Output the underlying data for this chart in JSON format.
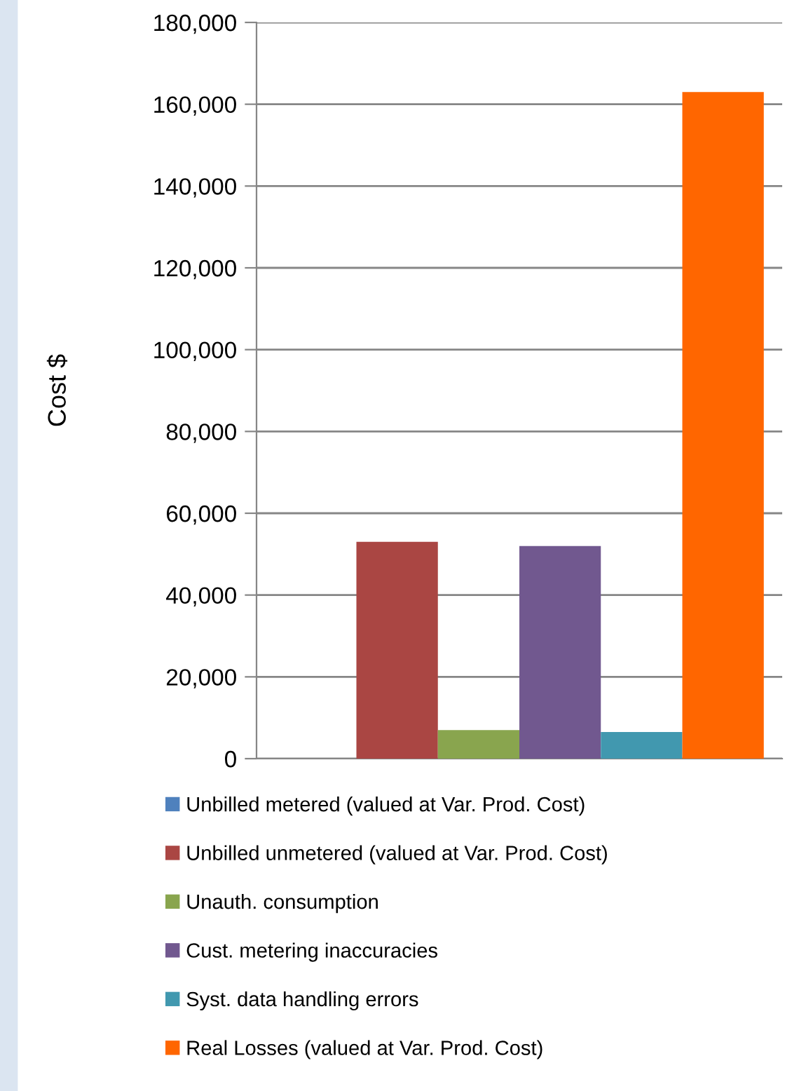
{
  "chart_data": {
    "type": "bar",
    "ylabel": "Cost $",
    "categories": [
      null
    ],
    "series": [
      {
        "name": "Unbilled metered (valued at Var. Prod. Cost)",
        "color": "#4f81bd",
        "values": [
          0
        ]
      },
      {
        "name": "Unbilled unmetered (valued at Var. Prod. Cost)",
        "color": "#aa4643",
        "values": [
          53000
        ]
      },
      {
        "name": "Unauth. consumption",
        "color": "#89a54e",
        "values": [
          7000
        ]
      },
      {
        "name": "Cust. metering inaccuracies",
        "color": "#71588f",
        "values": [
          52000
        ]
      },
      {
        "name": "Syst. data handling errors",
        "color": "#4198af",
        "values": [
          6500
        ]
      },
      {
        "name": "Real Losses (valued at Var. Prod. Cost)",
        "color": "#ff6600",
        "values": [
          163000
        ]
      }
    ],
    "ylim": [
      0,
      180000
    ],
    "yticks": [
      {
        "value": 0,
        "label": "0"
      },
      {
        "value": 20000,
        "label": "20,000"
      },
      {
        "value": 40000,
        "label": "40,000"
      },
      {
        "value": 60000,
        "label": "60,000"
      },
      {
        "value": 80000,
        "label": "80,000"
      },
      {
        "value": 100000,
        "label": "100,000"
      },
      {
        "value": 120000,
        "label": "120,000"
      },
      {
        "value": 140000,
        "label": "140,000"
      },
      {
        "value": 160000,
        "label": "160,000"
      },
      {
        "value": 180000,
        "label": "180,000"
      }
    ],
    "grid": "y",
    "legend": "bottom"
  }
}
